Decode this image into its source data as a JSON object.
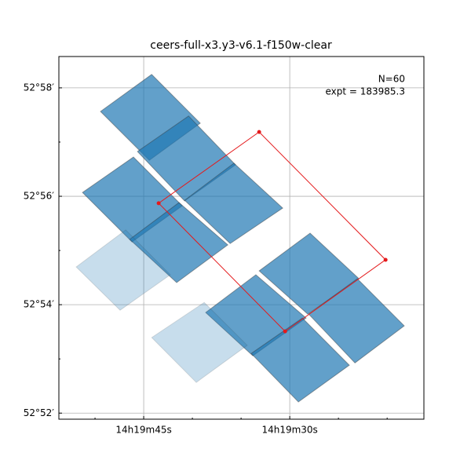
{
  "chart_data": {
    "type": "footprint",
    "title": "ceers-full-x3.y3-v6.1-f150w-clear",
    "annotations": [
      "N=60",
      "expt = 183985.3"
    ],
    "xlim": [
      214.9738,
      214.8176
    ],
    "ylim": [
      52.8648,
      52.9763
    ],
    "xticks": [
      {
        "value": 214.9375,
        "label": "14h19m45s"
      },
      {
        "value": 214.875,
        "label": "14h19m30s"
      }
    ],
    "xminorticks": [
      214.95833,
      214.91667,
      214.89583,
      214.85417,
      214.83333
    ],
    "yticks": [
      {
        "value": 52.96667,
        "label": "52°58′"
      },
      {
        "value": 52.93333,
        "label": "52°56′"
      },
      {
        "value": 52.9,
        "label": "52°54′"
      },
      {
        "value": 52.86667,
        "label": "52°52′"
      }
    ],
    "yminorticks": [
      52.95,
      52.91667,
      52.88333
    ],
    "grid": true,
    "footprints": [
      {
        "color": "#1f77b4",
        "alpha": 0.7,
        "x": [
          214.956,
          214.9341,
          214.9133,
          214.9351
        ],
        "y": [
          52.9594,
          52.9708,
          52.9558,
          52.9444
        ]
      },
      {
        "color": "#1f77b4",
        "alpha": 0.7,
        "x": [
          214.9402,
          214.9183,
          214.8982,
          214.92
        ],
        "y": [
          52.9471,
          52.958,
          52.943,
          52.9319
        ]
      },
      {
        "color": "#1f77b4",
        "alpha": 0.7,
        "x": [
          214.9637,
          214.9419,
          214.921,
          214.9425
        ],
        "y": [
          52.9345,
          52.9454,
          52.9304,
          52.9193
        ]
      },
      {
        "color": "#1f77b4",
        "alpha": 0.7,
        "x": [
          214.92,
          214.8989,
          214.878,
          214.9005
        ],
        "y": [
          52.9321,
          52.9435,
          52.9297,
          52.9188
        ]
      },
      {
        "color": "#1f77b4",
        "alpha": 0.7,
        "x": [
          214.9435,
          214.9224,
          214.9015,
          214.9234
        ],
        "y": [
          52.9201,
          52.9314,
          52.9184,
          52.9068
        ]
      },
      {
        "color": "#1f77b4",
        "alpha": 0.7,
        "x": [
          214.8881,
          214.8663,
          214.8454,
          214.8673
        ],
        "y": [
          52.9104,
          52.922,
          52.908,
          52.8971
        ]
      },
      {
        "color": "#1f77b4",
        "alpha": 0.7,
        "x": [
          214.911,
          214.8895,
          214.868,
          214.8908
        ],
        "y": [
          52.8976,
          52.9092,
          52.8959,
          52.8843
        ]
      },
      {
        "color": "#1f77b4",
        "alpha": 0.7,
        "x": [
          214.8669,
          214.8461,
          214.826,
          214.8471
        ],
        "y": [
          52.8971,
          52.908,
          52.8935,
          52.8821
        ]
      },
      {
        "color": "#1f77b4",
        "alpha": 0.7,
        "x": [
          214.8915,
          214.8696,
          214.8495,
          214.8713
        ],
        "y": [
          52.885,
          52.8959,
          52.8814,
          52.8701
        ]
      },
      {
        "color": "#1f77b4",
        "alpha": 0.25,
        "x": [
          214.9664,
          214.9452,
          214.9261,
          214.9476
        ],
        "y": [
          52.9116,
          52.923,
          52.9092,
          52.8983
        ]
      },
      {
        "color": "#1f77b4",
        "alpha": 0.25,
        "x": [
          214.9341,
          214.9116,
          214.8932,
          214.915
        ],
        "y": [
          52.8899,
          52.9007,
          52.8875,
          52.8761
        ]
      }
    ],
    "outline": {
      "color": "#e41a1c",
      "x": [
        214.9311,
        214.8881,
        214.834,
        214.877
      ],
      "y": [
        52.9312,
        52.9531,
        52.9138,
        52.8918
      ]
    }
  }
}
